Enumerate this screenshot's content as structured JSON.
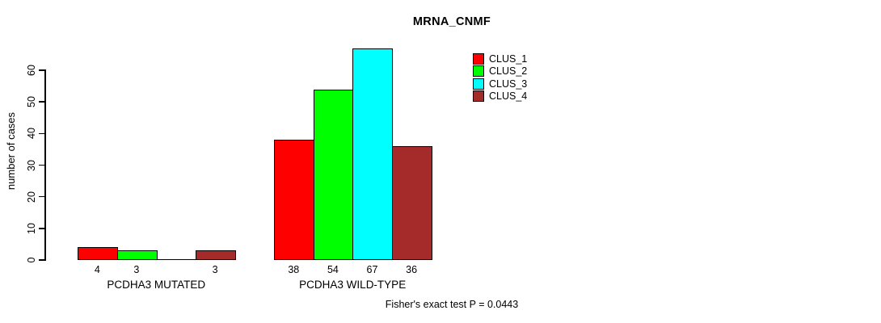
{
  "page": {
    "background": "#ffffff",
    "text_color": "#000000"
  },
  "chart_data": {
    "type": "bar",
    "title": "MRNA_CNMF",
    "ylabel": "number of cases",
    "xlabel": "",
    "categories": [
      "PCDHA3 MUTATED",
      "PCDHA3 WILD-TYPE"
    ],
    "series": [
      {
        "name": "CLUS_1",
        "color": "#ff0000",
        "values": [
          4,
          38
        ]
      },
      {
        "name": "CLUS_2",
        "color": "#00ff00",
        "values": [
          3,
          54
        ]
      },
      {
        "name": "CLUS_3",
        "color": "#00ffff",
        "values": [
          0,
          67
        ]
      },
      {
        "name": "CLUS_4",
        "color": "#a52a2a",
        "values": [
          3,
          36
        ]
      }
    ],
    "bar_value_labels_shown": true,
    "zero_value_bars_unlabeled": true,
    "ylim": [
      0,
      60
    ],
    "ytick_step": 10,
    "yticks": [
      0,
      10,
      20,
      30,
      40,
      50,
      60
    ],
    "grid": false,
    "legend": {
      "position": "top-right",
      "entries": [
        "CLUS_1",
        "CLUS_2",
        "CLUS_3",
        "CLUS_4"
      ]
    },
    "annotation": "Fisher's exact test P = 0.0443",
    "axis_color": "#000000",
    "bar_border_color": "#000000"
  }
}
